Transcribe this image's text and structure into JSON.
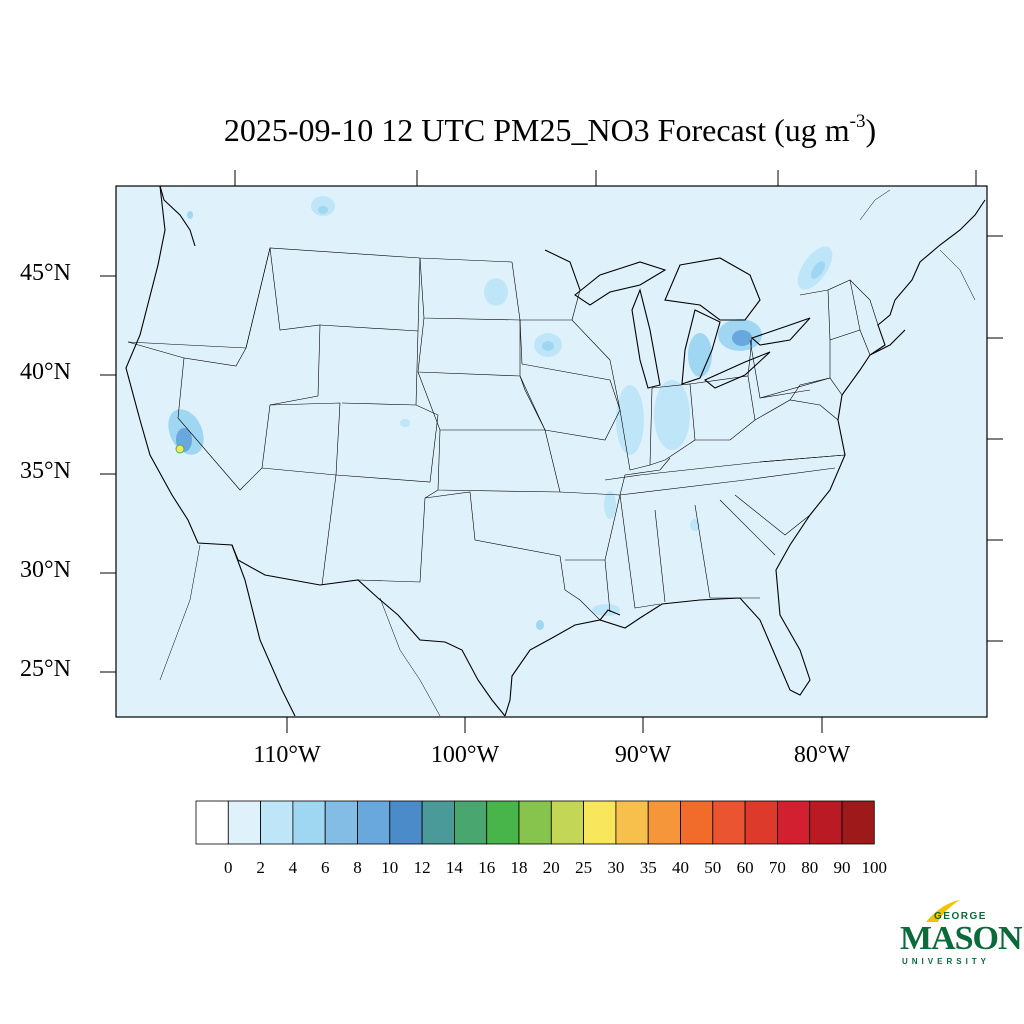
{
  "title": {
    "main": "2025-09-10 12 UTC PM25_NO3 Forecast (ug m",
    "superscript": "-3",
    "close": ")"
  },
  "map": {
    "background_color": "#dff1fb",
    "latitude_labels": [
      "45°N",
      "40°N",
      "35°N",
      "30°N",
      "25°N"
    ],
    "longitude_labels": [
      "110°W",
      "100°W",
      "90°W",
      "80°W"
    ]
  },
  "colorbar": {
    "labels": [
      "0",
      "2",
      "4",
      "6",
      "8",
      "10",
      "12",
      "14",
      "16",
      "18",
      "20",
      "25",
      "30",
      "35",
      "40",
      "50",
      "60",
      "70",
      "80",
      "90",
      "100"
    ],
    "colors": [
      "#ffffff",
      "#dff1fb",
      "#bfe6f8",
      "#9fd6f2",
      "#83bde6",
      "#68a8dc",
      "#4b8bc9",
      "#4a9a9a",
      "#48a66e",
      "#47b54a",
      "#86c44d",
      "#c4d655",
      "#f8e75c",
      "#f7c04c",
      "#f5963a",
      "#f16c2b",
      "#ea5430",
      "#de3a2c",
      "#d32030",
      "#b91a23",
      "#9e1a1a"
    ]
  },
  "logo": {
    "line1": "GEORGE",
    "line2": "MASON",
    "line3": "UNIVERSITY"
  }
}
